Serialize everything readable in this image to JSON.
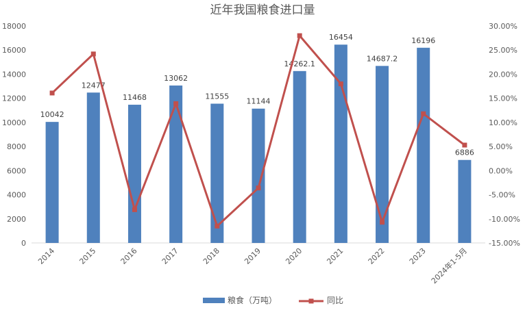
{
  "chart_data": {
    "type": "bar",
    "title": "近年我国粮食进口量",
    "categories": [
      "2014",
      "2015",
      "2016",
      "2017",
      "2018",
      "2019",
      "2020",
      "2021",
      "2022",
      "2023",
      "2024年1-5月"
    ],
    "series": [
      {
        "name": "粮食（万吨）",
        "type": "bar",
        "axis": "left",
        "color": "#4F81BD",
        "values": [
          10042,
          12477,
          11468,
          13062,
          11555,
          11144,
          14262.1,
          16454,
          14687.2,
          16196,
          6886
        ],
        "labels": [
          "10042",
          "12477",
          "11468",
          "13062",
          "11555",
          "11144",
          "14262.1",
          "16454",
          "14687.2",
          "16196",
          "6886"
        ]
      },
      {
        "name": "同比",
        "type": "line",
        "axis": "right",
        "color": "#C0504D",
        "values": [
          0.161,
          0.242,
          -0.081,
          0.139,
          -0.115,
          -0.036,
          0.28,
          0.18,
          -0.107,
          0.118,
          0.053
        ]
      }
    ],
    "y_left": {
      "min": 0,
      "max": 18000,
      "ticks": [
        "0",
        "2000",
        "4000",
        "6000",
        "8000",
        "10000",
        "12000",
        "14000",
        "16000",
        "18000"
      ]
    },
    "y_right": {
      "min": -0.15,
      "max": 0.3,
      "ticks": [
        "-15.00%",
        "-10.00%",
        "-5.00%",
        "0.00%",
        "5.00%",
        "10.00%",
        "15.00%",
        "20.00%",
        "25.00%",
        "30.00%"
      ]
    },
    "grid": false,
    "legend": "bottom"
  }
}
